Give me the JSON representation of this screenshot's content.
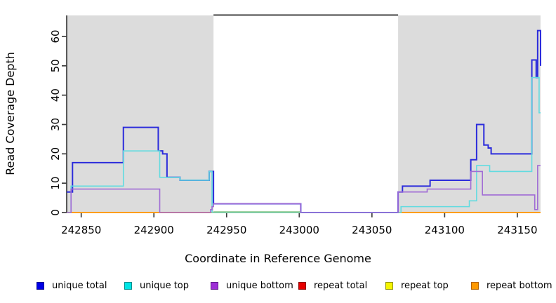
{
  "figure": {
    "x_axis_title": "Coordinate in Reference Genome",
    "y_axis_title": "Read Coverage Depth"
  },
  "legend": {
    "items": [
      {
        "label": "unique total",
        "fill": "#0000e6",
        "border": "#000090"
      },
      {
        "label": "unique top",
        "fill": "#00e5e5",
        "border": "#008b8b"
      },
      {
        "label": "unique bottom",
        "fill": "#9d2fd6",
        "border": "#5e1b8a"
      },
      {
        "label": "repeat total",
        "fill": "#e60000",
        "border": "#8b0000"
      },
      {
        "label": "repeat top",
        "fill": "#f5f500",
        "border": "#8f8f00"
      },
      {
        "label": "repeat bottom",
        "fill": "#ff9900",
        "border": "#b36200"
      }
    ]
  },
  "chart_data": {
    "type": "line",
    "subtype": "step-coverage",
    "title": "",
    "xlabel": "Coordinate in Reference Genome",
    "ylabel": "Read Coverage Depth",
    "x_range": [
      242840,
      243166
    ],
    "y_range": [
      0,
      65
    ],
    "x_ticks": [
      242850,
      242900,
      242950,
      243000,
      243050,
      243100,
      243150
    ],
    "y_ticks": [
      0,
      10,
      20,
      30,
      40,
      50,
      60
    ],
    "grid": "off",
    "legend_position": "bottom",
    "shaded_regions": [
      {
        "x1": 242840,
        "x2": 242941,
        "color": "#dcdcdc"
      },
      {
        "x1": 243068,
        "x2": 243166,
        "color": "#dcdcdc"
      }
    ],
    "top_rule": {
      "x1": 242941,
      "x2": 243068,
      "color": "#6f6f6f"
    },
    "baseline_overlay": {
      "x1": 242941,
      "x2": 243001,
      "y": 0,
      "color": "#85c785"
    },
    "series": [
      {
        "name": "repeat total",
        "color": "#e02020",
        "width": 1.6,
        "points": [
          [
            242840,
            0
          ],
          [
            243166,
            0
          ]
        ]
      },
      {
        "name": "repeat top",
        "color": "#f2f20a",
        "width": 1.6,
        "points": [
          [
            242840,
            0
          ],
          [
            243166,
            0
          ]
        ]
      },
      {
        "name": "repeat bottom",
        "color": "#ff9e1b",
        "width": 2,
        "points": [
          [
            242840,
            0
          ],
          [
            243166,
            0
          ]
        ]
      },
      {
        "name": "unique total",
        "color": "#2c2cdb",
        "width": 2,
        "points": [
          [
            242840,
            7
          ],
          [
            242844,
            17
          ],
          [
            242879,
            29
          ],
          [
            242903,
            21
          ],
          [
            242906,
            20
          ],
          [
            242909,
            12
          ],
          [
            242918,
            11
          ],
          [
            242938,
            14
          ],
          [
            242941,
            3
          ],
          [
            243001,
            0
          ],
          [
            243068,
            7
          ],
          [
            243071,
            9
          ],
          [
            243090,
            11
          ],
          [
            243118,
            18
          ],
          [
            243122,
            30
          ],
          [
            243127,
            23
          ],
          [
            243130,
            22
          ],
          [
            243132,
            20
          ],
          [
            243160,
            52
          ],
          [
            243163,
            46
          ],
          [
            243164,
            62
          ],
          [
            243166,
            50
          ]
        ]
      },
      {
        "name": "unique top",
        "color": "#62dbe0",
        "width": 1.6,
        "points": [
          [
            242840,
            0
          ],
          [
            242843,
            9
          ],
          [
            242879,
            21
          ],
          [
            242904,
            12
          ],
          [
            242918,
            11
          ],
          [
            242938,
            14
          ],
          [
            242940,
            0
          ],
          [
            243070,
            2
          ],
          [
            243117,
            4
          ],
          [
            243122,
            16
          ],
          [
            243131,
            14
          ],
          [
            243160,
            46
          ],
          [
            243165,
            34
          ]
        ]
      },
      {
        "name": "unique bottom",
        "color": "#a06cd5",
        "width": 1.6,
        "points": [
          [
            242840,
            0
          ],
          [
            242843,
            8
          ],
          [
            242904,
            0
          ],
          [
            242939,
            1
          ],
          [
            242940,
            2
          ],
          [
            242941,
            3
          ],
          [
            243001,
            0
          ],
          [
            243068,
            7
          ],
          [
            243088,
            8
          ],
          [
            243118,
            14
          ],
          [
            243126,
            6
          ],
          [
            243162,
            1
          ],
          [
            243164,
            16
          ]
        ]
      }
    ]
  }
}
